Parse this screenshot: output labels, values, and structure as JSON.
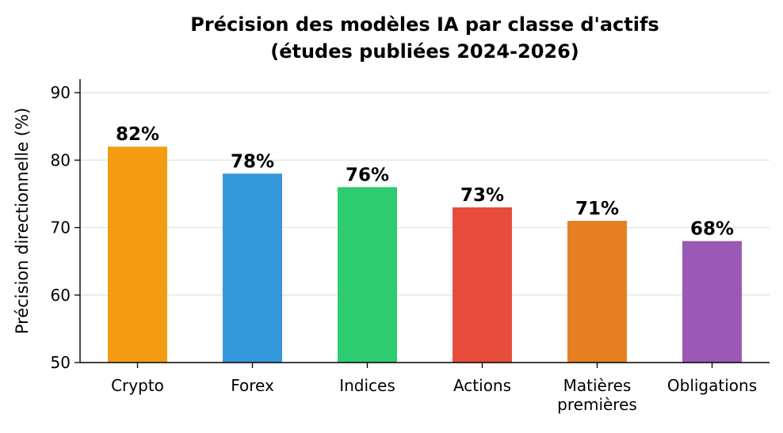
{
  "chart_data": {
    "type": "bar",
    "title_lines": [
      "Précision des modèles IA par classe d'actifs",
      "(études publiées 2024-2026)"
    ],
    "ylabel": "Précision directionnelle (%)",
    "xlabel": "",
    "ylim": [
      50,
      92
    ],
    "yticks": [
      "50",
      "60",
      "70",
      "80",
      "90"
    ],
    "categories": [
      [
        "Crypto"
      ],
      [
        "Forex"
      ],
      [
        "Indices"
      ],
      [
        "Actions"
      ],
      [
        "Matières",
        "premières"
      ],
      [
        "Obligations"
      ]
    ],
    "values": [
      82,
      78,
      76,
      73,
      71,
      68
    ],
    "value_labels": [
      "82%",
      "78%",
      "76%",
      "73%",
      "71%",
      "68%"
    ],
    "colors": [
      "#f39c12",
      "#3498db",
      "#2ecc71",
      "#e74c3c",
      "#e67e22",
      "#9b59b6"
    ],
    "grid": "horizontal",
    "legend": "none"
  }
}
